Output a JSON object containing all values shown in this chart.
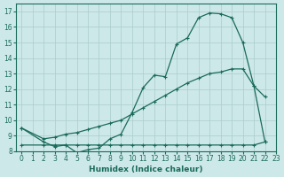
{
  "xlabel": "Humidex (Indice chaleur)",
  "bg_color": "#cde8e8",
  "grid_color": "#aacccc",
  "line_color": "#1a6b5a",
  "xlim": [
    -0.5,
    23
  ],
  "ylim": [
    8,
    17.5
  ],
  "series1_x": [
    0,
    2,
    3,
    4,
    5,
    6,
    7,
    8,
    9,
    10,
    11,
    12,
    13,
    14,
    15,
    16,
    17,
    18,
    19,
    20,
    21,
    22
  ],
  "series1_y": [
    9.5,
    8.6,
    8.3,
    8.4,
    7.9,
    8.1,
    8.2,
    8.8,
    9.1,
    10.5,
    12.1,
    12.9,
    12.8,
    14.9,
    15.3,
    16.6,
    16.9,
    16.85,
    16.6,
    15.0,
    12.2,
    8.6
  ],
  "series2_x": [
    0,
    2,
    3,
    4,
    5,
    6,
    7,
    8,
    9,
    10,
    11,
    12,
    13,
    14,
    15,
    16,
    17,
    18,
    19,
    20,
    21,
    22
  ],
  "series2_y": [
    9.5,
    8.8,
    8.9,
    9.1,
    9.2,
    9.4,
    9.6,
    9.8,
    10.0,
    10.4,
    10.8,
    11.2,
    11.6,
    12.0,
    12.4,
    12.7,
    13.0,
    13.1,
    13.3,
    13.3,
    12.2,
    11.5
  ],
  "series3_x": [
    0,
    2,
    3,
    4,
    5,
    6,
    7,
    8,
    9,
    10,
    11,
    12,
    13,
    14,
    15,
    16,
    17,
    18,
    19,
    20,
    21,
    22
  ],
  "series3_y": [
    8.4,
    8.4,
    8.4,
    8.4,
    8.4,
    8.4,
    8.4,
    8.4,
    8.4,
    8.4,
    8.4,
    8.4,
    8.4,
    8.4,
    8.4,
    8.4,
    8.4,
    8.4,
    8.4,
    8.4,
    8.4,
    8.6
  ],
  "yticks": [
    8,
    9,
    10,
    11,
    12,
    13,
    14,
    15,
    16,
    17
  ],
  "xticks": [
    0,
    1,
    2,
    3,
    4,
    5,
    6,
    7,
    8,
    9,
    10,
    11,
    12,
    13,
    14,
    15,
    16,
    17,
    18,
    19,
    20,
    21,
    22,
    23
  ]
}
